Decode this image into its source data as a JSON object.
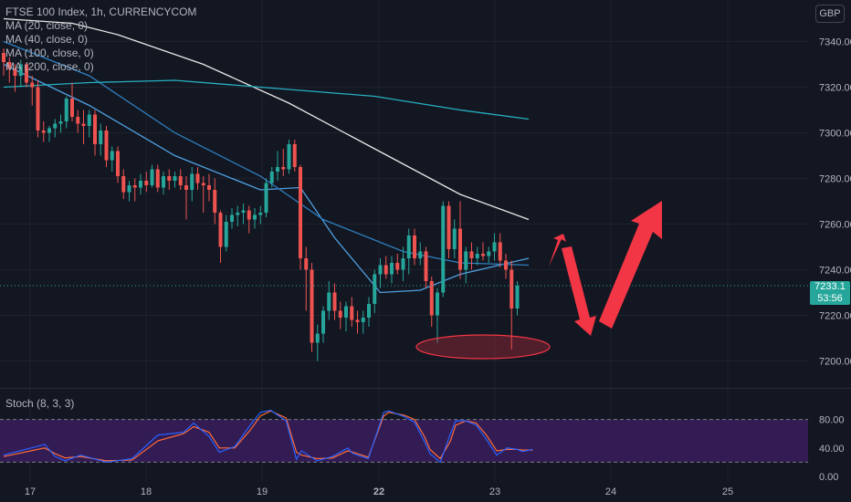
{
  "header": {
    "title": "FTSE 100 Index, 1h, CURRENCYCOM",
    "currency_badge": "GBP",
    "indicators": [
      "MA (20, close, 0)",
      "MA (40, close, 0)",
      "MA (100, close, 0)",
      "MA (200, close, 0)"
    ]
  },
  "price_label": {
    "value": "7233.1",
    "countdown": "53:56"
  },
  "oscillator": {
    "title": "Stoch (8, 3, 3)",
    "ticks": [
      "80.00",
      "40.00",
      "0.00"
    ]
  },
  "colors": {
    "bg": "#131722",
    "up": "#26a69a",
    "down": "#ef5350",
    "ma20": "#4fa0e0",
    "ma40": "#2f7fbf",
    "ma100": "#e8e8e8",
    "ma200": "#26b0c0",
    "stoch_k": "#2962ff",
    "stoch_d": "#ff6d3a",
    "stoch_band": "#3a1c5c",
    "annotation": "#f23645"
  },
  "chart_data": {
    "type": "candlestick",
    "symbol": "FTSE 100 Index",
    "interval": "1h",
    "ylim": [
      7193,
      7355
    ],
    "y_ticks": [
      7340,
      7320,
      7300,
      7280,
      7260,
      7240,
      7220,
      7200
    ],
    "x_tick_labels": [
      "17",
      "18",
      "19",
      "22",
      "23",
      "24",
      "25"
    ],
    "candles": [
      [
        7335,
        7337,
        7325,
        7331
      ],
      [
        7331,
        7333,
        7322,
        7328
      ],
      [
        7328,
        7330,
        7318,
        7325
      ],
      [
        7325,
        7332,
        7320,
        7330
      ],
      [
        7330,
        7331,
        7320,
        7322
      ],
      [
        7322,
        7325,
        7312,
        7320
      ],
      [
        7320,
        7323,
        7298,
        7301
      ],
      [
        7301,
        7305,
        7296,
        7300
      ],
      [
        7300,
        7303,
        7296,
        7302
      ],
      [
        7302,
        7306,
        7298,
        7304
      ],
      [
        7304,
        7308,
        7300,
        7305
      ],
      [
        7305,
        7316,
        7302,
        7315
      ],
      [
        7315,
        7322,
        7305,
        7307
      ],
      [
        7307,
        7310,
        7300,
        7304
      ],
      [
        7304,
        7310,
        7295,
        7303
      ],
      [
        7303,
        7310,
        7298,
        7308
      ],
      [
        7308,
        7310,
        7290,
        7295
      ],
      [
        7295,
        7304,
        7290,
        7301
      ],
      [
        7301,
        7303,
        7285,
        7288
      ],
      [
        7288,
        7294,
        7283,
        7292
      ],
      [
        7292,
        7294,
        7278,
        7281
      ],
      [
        7281,
        7284,
        7271,
        7274
      ],
      [
        7274,
        7279,
        7270,
        7277
      ],
      [
        7277,
        7280,
        7270,
        7276
      ],
      [
        7276,
        7282,
        7273,
        7279
      ],
      [
        7279,
        7283,
        7274,
        7277
      ],
      [
        7277,
        7286,
        7276,
        7284
      ],
      [
        7284,
        7286,
        7274,
        7276
      ],
      [
        7276,
        7283,
        7273,
        7281
      ],
      [
        7281,
        7284,
        7275,
        7279
      ],
      [
        7279,
        7283,
        7276,
        7281
      ],
      [
        7281,
        7284,
        7275,
        7277
      ],
      [
        7277,
        7281,
        7262,
        7275
      ],
      [
        7275,
        7285,
        7270,
        7282
      ],
      [
        7282,
        7285,
        7275,
        7278
      ],
      [
        7278,
        7281,
        7265,
        7277
      ],
      [
        7277,
        7282,
        7270,
        7275
      ],
      [
        7275,
        7280,
        7260,
        7265
      ],
      [
        7265,
        7266,
        7243,
        7250
      ],
      [
        7250,
        7264,
        7248,
        7261
      ],
      [
        7261,
        7267,
        7258,
        7264
      ],
      [
        7264,
        7268,
        7259,
        7265
      ],
      [
        7265,
        7269,
        7260,
        7266
      ],
      [
        7266,
        7268,
        7256,
        7262
      ],
      [
        7262,
        7267,
        7258,
        7264
      ],
      [
        7264,
        7268,
        7260,
        7265
      ],
      [
        7265,
        7280,
        7263,
        7278
      ],
      [
        7278,
        7285,
        7276,
        7283
      ],
      [
        7283,
        7292,
        7279,
        7285
      ],
      [
        7285,
        7293,
        7281,
        7284
      ],
      [
        7284,
        7297,
        7282,
        7295
      ],
      [
        7295,
        7297,
        7283,
        7285
      ],
      [
        7285,
        7286,
        7240,
        7245
      ],
      [
        7245,
        7250,
        7222,
        7240
      ],
      [
        7240,
        7243,
        7204,
        7208
      ],
      [
        7208,
        7216,
        7200,
        7212
      ],
      [
        7212,
        7224,
        7208,
        7222
      ],
      [
        7222,
        7235,
        7218,
        7230
      ],
      [
        7230,
        7234,
        7218,
        7222
      ],
      [
        7222,
        7226,
        7214,
        7219
      ],
      [
        7219,
        7226,
        7213,
        7224
      ],
      [
        7224,
        7228,
        7215,
        7218
      ],
      [
        7218,
        7222,
        7212,
        7217
      ],
      [
        7217,
        7222,
        7212,
        7219
      ],
      [
        7219,
        7228,
        7215,
        7225
      ],
      [
        7225,
        7240,
        7221,
        7238
      ],
      [
        7238,
        7245,
        7232,
        7242
      ],
      [
        7242,
        7246,
        7236,
        7238
      ],
      [
        7238,
        7246,
        7234,
        7243
      ],
      [
        7243,
        7247,
        7238,
        7240
      ],
      [
        7240,
        7250,
        7235,
        7245
      ],
      [
        7245,
        7258,
        7238,
        7255
      ],
      [
        7255,
        7258,
        7242,
        7245
      ],
      [
        7245,
        7252,
        7242,
        7248
      ],
      [
        7248,
        7250,
        7232,
        7235
      ],
      [
        7235,
        7237,
        7215,
        7220
      ],
      [
        7220,
        7232,
        7208,
        7230
      ],
      [
        7230,
        7270,
        7228,
        7268
      ],
      [
        7268,
        7270,
        7245,
        7249
      ],
      [
        7249,
        7262,
        7245,
        7258
      ],
      [
        7258,
        7270,
        7236,
        7240
      ],
      [
        7240,
        7250,
        7234,
        7248
      ],
      [
        7248,
        7252,
        7240,
        7245
      ],
      [
        7245,
        7250,
        7242,
        7247
      ],
      [
        7247,
        7252,
        7244,
        7246
      ],
      [
        7246,
        7250,
        7243,
        7248
      ],
      [
        7248,
        7256,
        7244,
        7252
      ],
      [
        7252,
        7256,
        7241,
        7244
      ],
      [
        7244,
        7247,
        7236,
        7240
      ],
      [
        7240,
        7244,
        7205,
        7223
      ],
      [
        7223,
        7235,
        7220,
        7233
      ]
    ],
    "series": [
      {
        "name": "MA (20, close, 0)",
        "values": [
          [
            0,
            7330
          ],
          [
            15,
            7312
          ],
          [
            30,
            7290
          ],
          [
            45,
            7275
          ],
          [
            52,
            7276
          ],
          [
            58,
            7254
          ],
          [
            66,
            7230
          ],
          [
            73,
            7231
          ],
          [
            80,
            7238
          ],
          [
            92,
            7245
          ]
        ]
      },
      {
        "name": "MA (40, close, 0)",
        "values": [
          [
            0,
            7340
          ],
          [
            15,
            7325
          ],
          [
            30,
            7300
          ],
          [
            45,
            7281
          ],
          [
            56,
            7262
          ],
          [
            70,
            7248
          ],
          [
            80,
            7243
          ],
          [
            92,
            7242
          ]
        ]
      },
      {
        "name": "MA (100, close, 0)",
        "values": [
          [
            0,
            7350
          ],
          [
            12,
            7348
          ],
          [
            20,
            7343
          ],
          [
            35,
            7330
          ],
          [
            50,
            7313
          ],
          [
            65,
            7293
          ],
          [
            80,
            7273
          ],
          [
            92,
            7262
          ]
        ]
      },
      {
        "name": "MA (200, close, 0)",
        "values": [
          [
            0,
            7320
          ],
          [
            15,
            7322
          ],
          [
            30,
            7323
          ],
          [
            50,
            7319
          ],
          [
            65,
            7316
          ],
          [
            80,
            7310
          ],
          [
            92,
            7306
          ]
        ]
      }
    ],
    "stochastic": {
      "name": "Stoch (8, 3, 3)",
      "ylim": [
        0,
        100
      ],
      "band": [
        20,
        80
      ],
      "k": [
        [
          0,
          30
        ],
        [
          8,
          45
        ],
        [
          10,
          28
        ],
        [
          12,
          22
        ],
        [
          15,
          30
        ],
        [
          20,
          20
        ],
        [
          25,
          25
        ],
        [
          30,
          58
        ],
        [
          35,
          62
        ],
        [
          37,
          75
        ],
        [
          40,
          56
        ],
        [
          42,
          34
        ],
        [
          45,
          42
        ],
        [
          48,
          72
        ],
        [
          50,
          90
        ],
        [
          52,
          93
        ],
        [
          55,
          78
        ],
        [
          57,
          24
        ],
        [
          58,
          36
        ],
        [
          61,
          22
        ],
        [
          64,
          28
        ],
        [
          67,
          40
        ],
        [
          68,
          32
        ],
        [
          71,
          25
        ],
        [
          74,
          90
        ],
        [
          75,
          92
        ],
        [
          78,
          84
        ],
        [
          80,
          76
        ],
        [
          82,
          48
        ],
        [
          83,
          32
        ],
        [
          85,
          20
        ],
        [
          87,
          60
        ],
        [
          88,
          78
        ],
        [
          90,
          78
        ],
        [
          92,
          72
        ],
        [
          94,
          52
        ],
        [
          96,
          30
        ],
        [
          98,
          40
        ],
        [
          100,
          38
        ],
        [
          101,
          35
        ],
        [
          103,
          38
        ]
      ],
      "d": [
        [
          0,
          28
        ],
        [
          8,
          40
        ],
        [
          10,
          32
        ],
        [
          12,
          26
        ],
        [
          15,
          28
        ],
        [
          20,
          22
        ],
        [
          25,
          23
        ],
        [
          30,
          50
        ],
        [
          35,
          60
        ],
        [
          37,
          70
        ],
        [
          40,
          62
        ],
        [
          42,
          40
        ],
        [
          45,
          40
        ],
        [
          48,
          65
        ],
        [
          50,
          85
        ],
        [
          52,
          92
        ],
        [
          55,
          82
        ],
        [
          57,
          34
        ],
        [
          58,
          30
        ],
        [
          61,
          25
        ],
        [
          64,
          26
        ],
        [
          67,
          36
        ],
        [
          68,
          34
        ],
        [
          71,
          27
        ],
        [
          74,
          85
        ],
        [
          75,
          90
        ],
        [
          78,
          86
        ],
        [
          80,
          80
        ],
        [
          82,
          55
        ],
        [
          83,
          38
        ],
        [
          85,
          25
        ],
        [
          87,
          50
        ],
        [
          88,
          72
        ],
        [
          90,
          78
        ],
        [
          92,
          75
        ],
        [
          94,
          58
        ],
        [
          96,
          36
        ],
        [
          98,
          38
        ],
        [
          100,
          38
        ],
        [
          101,
          37
        ],
        [
          103,
          37
        ]
      ]
    }
  }
}
